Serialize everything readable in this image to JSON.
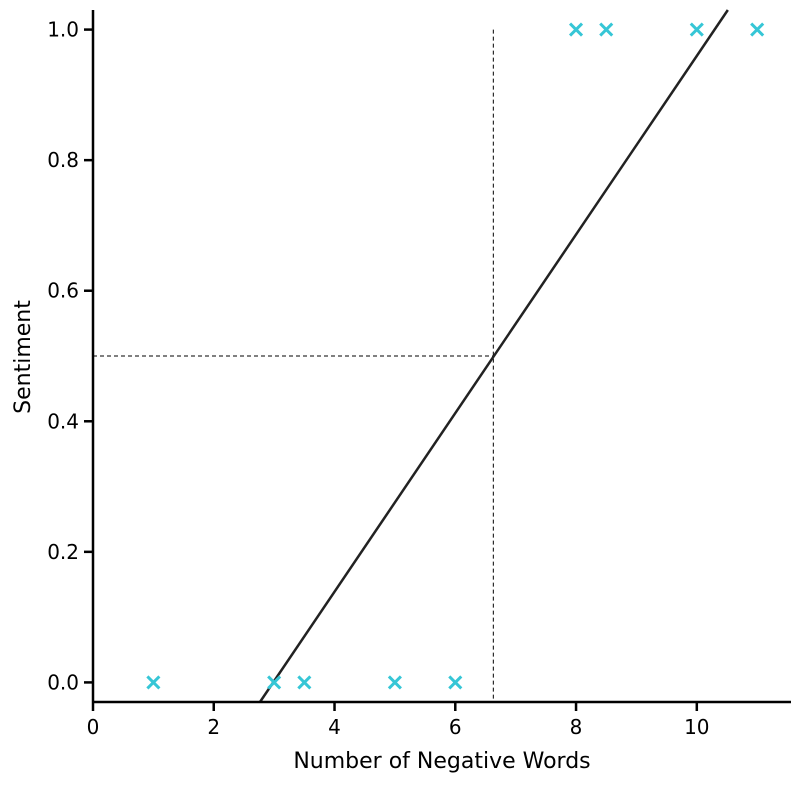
{
  "chart_data": {
    "type": "scatter",
    "title": "",
    "xlabel": "Number of Negative Words",
    "ylabel": "Sentiment",
    "xlim": [
      0,
      11.56
    ],
    "ylim": [
      -0.03,
      1.03
    ],
    "xticks": [
      0,
      2,
      4,
      6,
      8,
      10
    ],
    "yticks": [
      0.0,
      0.2,
      0.4,
      0.6,
      0.8,
      1.0
    ],
    "xtick_labels": [
      "0",
      "2",
      "4",
      "6",
      "8",
      "10"
    ],
    "ytick_labels": [
      "0.0",
      "0.2",
      "0.4",
      "0.6",
      "0.8",
      "1.0"
    ],
    "grid": false,
    "points": {
      "x": [
        1,
        3,
        3.5,
        5,
        6,
        8,
        8.5,
        10,
        11
      ],
      "y": [
        0,
        0,
        0,
        0,
        0,
        1,
        1,
        1,
        1
      ],
      "marker": "x",
      "color": "#36c6d6"
    },
    "fit_line": {
      "slope": 0.1368,
      "intercept": -0.4083,
      "color": "#222222"
    },
    "threshold": {
      "y": 0.5,
      "x": 6.63,
      "style": "dashed"
    }
  }
}
